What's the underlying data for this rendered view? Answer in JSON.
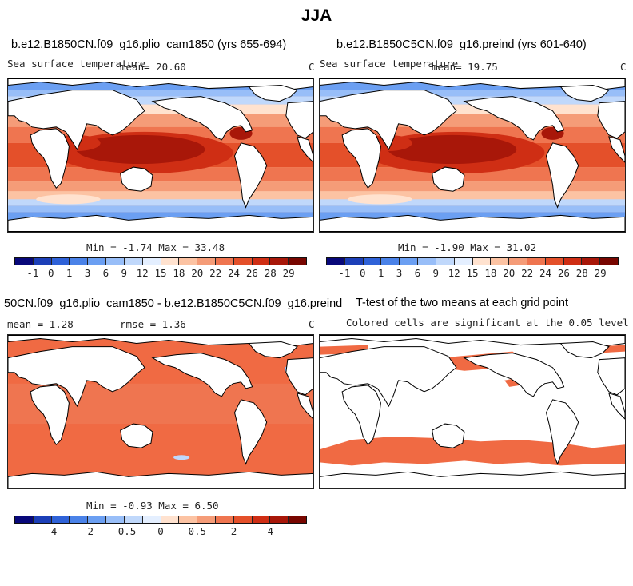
{
  "title": "JJA",
  "panels": [
    {
      "title": "b.e12.B1850CN.f09_g16.plio_cam1850 (yrs 655-694)",
      "left_label": "Sea surface temperature",
      "center_label": "mean=  20.60",
      "right_label": "C",
      "stats": "Min =  -1.74 Max =  33.48"
    },
    {
      "title": "b.e12.B1850C5CN.f09_g16.preind (yrs 601-640)",
      "left_label": "Sea surface temperature",
      "center_label": "mean=  19.75",
      "right_label": "C",
      "stats": "Min =  -1.90 Max =  31.02"
    },
    {
      "title": "50CN.f09_g16.plio_cam1850 - b.e12.B1850C5CN.f09_g16.preind",
      "left_label": "mean =   1.28",
      "center_label": "rmse =   1.36",
      "right_label": "C",
      "stats": "Min =  -0.93 Max =   6.50"
    },
    {
      "title": "T-test of the two means at each grid point",
      "subtitle": "Colored cells are significant at the 0.05 level"
    }
  ],
  "colorbars": {
    "sst": {
      "colors": [
        "#08087a",
        "#1c3fb8",
        "#2f62d8",
        "#4a82e8",
        "#6b9ff2",
        "#98bef8",
        "#c0d8fb",
        "#e4efff",
        "#ffe2cf",
        "#fcc3a3",
        "#f59c78",
        "#ef7550",
        "#e4502a",
        "#cf2e14",
        "#a81709",
        "#780600"
      ],
      "ticks": [
        "-1",
        "0",
        "1",
        "3",
        "6",
        "9",
        "12",
        "15",
        "18",
        "20",
        "22",
        "24",
        "26",
        "28",
        "29"
      ]
    },
    "diff": {
      "colors": [
        "#08087a",
        "#1c3fb8",
        "#2f62d8",
        "#4a82e8",
        "#6b9ff2",
        "#98bef8",
        "#c0d8fb",
        "#e4efff",
        "#ffe2cf",
        "#fcc3a3",
        "#f59c78",
        "#ef7550",
        "#e4502a",
        "#cf2e14",
        "#a81709",
        "#780600"
      ],
      "ticks": [
        "-4",
        "-2",
        "-0.5",
        "0",
        "0.5",
        "2",
        "4"
      ]
    }
  },
  "colors": {
    "land": "#ffffff",
    "coast": "#000000",
    "ocean_diff": "#f06a43",
    "significant": "#f06a43"
  }
}
